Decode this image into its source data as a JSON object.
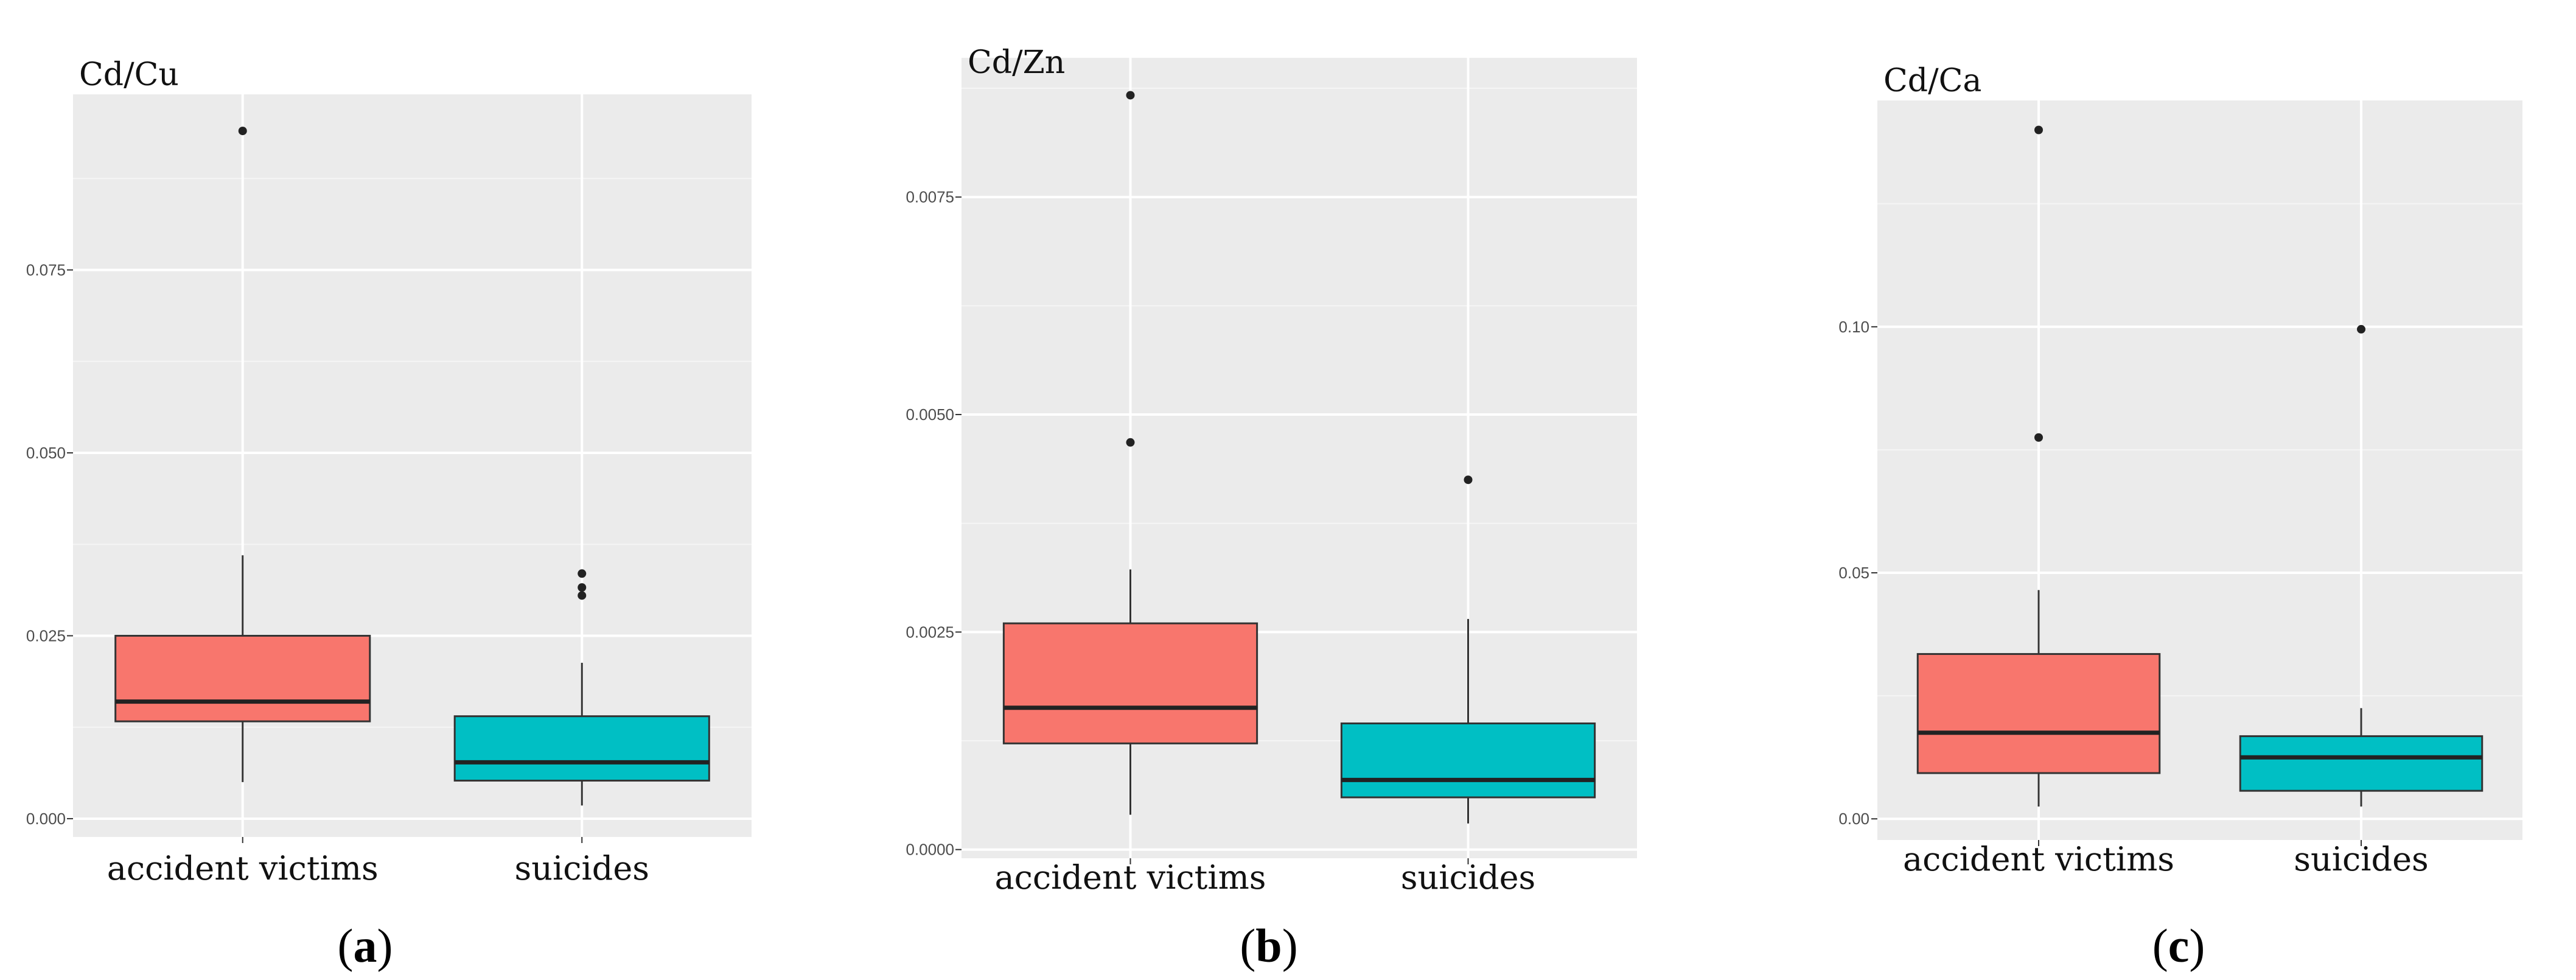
{
  "chart_data": [
    {
      "type": "box",
      "ylabel": "Cd/Cu",
      "caption_letter": "a",
      "categories": [
        "accident victims",
        "suicides"
      ],
      "yticks": [
        0.0,
        0.025,
        0.05,
        0.075
      ],
      "ytick_labels": [
        "0.000",
        "0.025",
        "0.050",
        "0.075"
      ],
      "ylim": [
        -0.0025,
        0.099
      ],
      "grid": true,
      "boxes": [
        {
          "category": "accident victims",
          "color": "#F8766D",
          "whisker_low": 0.005,
          "q1": 0.0133,
          "median": 0.016,
          "q3": 0.025,
          "whisker_high": 0.036,
          "outliers": [
            0.094
          ]
        },
        {
          "category": "suicides",
          "color": "#00BFC4",
          "whisker_low": 0.0018,
          "q1": 0.0052,
          "median": 0.0077,
          "q3": 0.014,
          "whisker_high": 0.0213,
          "outliers": [
            0.0335,
            0.0316,
            0.0305
          ]
        }
      ]
    },
    {
      "type": "box",
      "ylabel": "Cd/Zn",
      "caption_letter": "b",
      "categories": [
        "accident victims",
        "suicides"
      ],
      "yticks": [
        0.0,
        0.0025,
        0.005,
        0.0075
      ],
      "ytick_labels": [
        "0.0000",
        "0.0025",
        "0.0050",
        "0.0075"
      ],
      "ylim": [
        -0.0001,
        0.0091
      ],
      "grid": true,
      "boxes": [
        {
          "category": "accident victims",
          "color": "#F8766D",
          "whisker_low": 0.0004,
          "q1": 0.00122,
          "median": 0.00163,
          "q3": 0.0026,
          "whisker_high": 0.00322,
          "outliers": [
            0.00867,
            0.00468
          ]
        },
        {
          "category": "suicides",
          "color": "#00BFC4",
          "whisker_low": 0.0003,
          "q1": 0.0006,
          "median": 0.0008,
          "q3": 0.00145,
          "whisker_high": 0.00265,
          "outliers": [
            0.00425
          ]
        }
      ]
    },
    {
      "type": "box",
      "ylabel": "Cd/Ca",
      "caption_letter": "c",
      "categories": [
        "accident victims",
        "suicides"
      ],
      "yticks": [
        0.0,
        0.05,
        0.1
      ],
      "ytick_labels": [
        "0.00",
        "0.05",
        "0.10"
      ],
      "ylim": [
        -0.0043,
        0.146
      ],
      "grid": true,
      "boxes": [
        {
          "category": "accident victims",
          "color": "#F8766D",
          "whisker_low": 0.0025,
          "q1": 0.0093,
          "median": 0.0175,
          "q3": 0.0335,
          "whisker_high": 0.0465,
          "outliers": [
            0.14,
            0.0775
          ]
        },
        {
          "category": "suicides",
          "color": "#00BFC4",
          "whisker_low": 0.0025,
          "q1": 0.0057,
          "median": 0.0125,
          "q3": 0.0168,
          "whisker_high": 0.0225,
          "outliers": [
            0.0995
          ]
        }
      ]
    }
  ]
}
